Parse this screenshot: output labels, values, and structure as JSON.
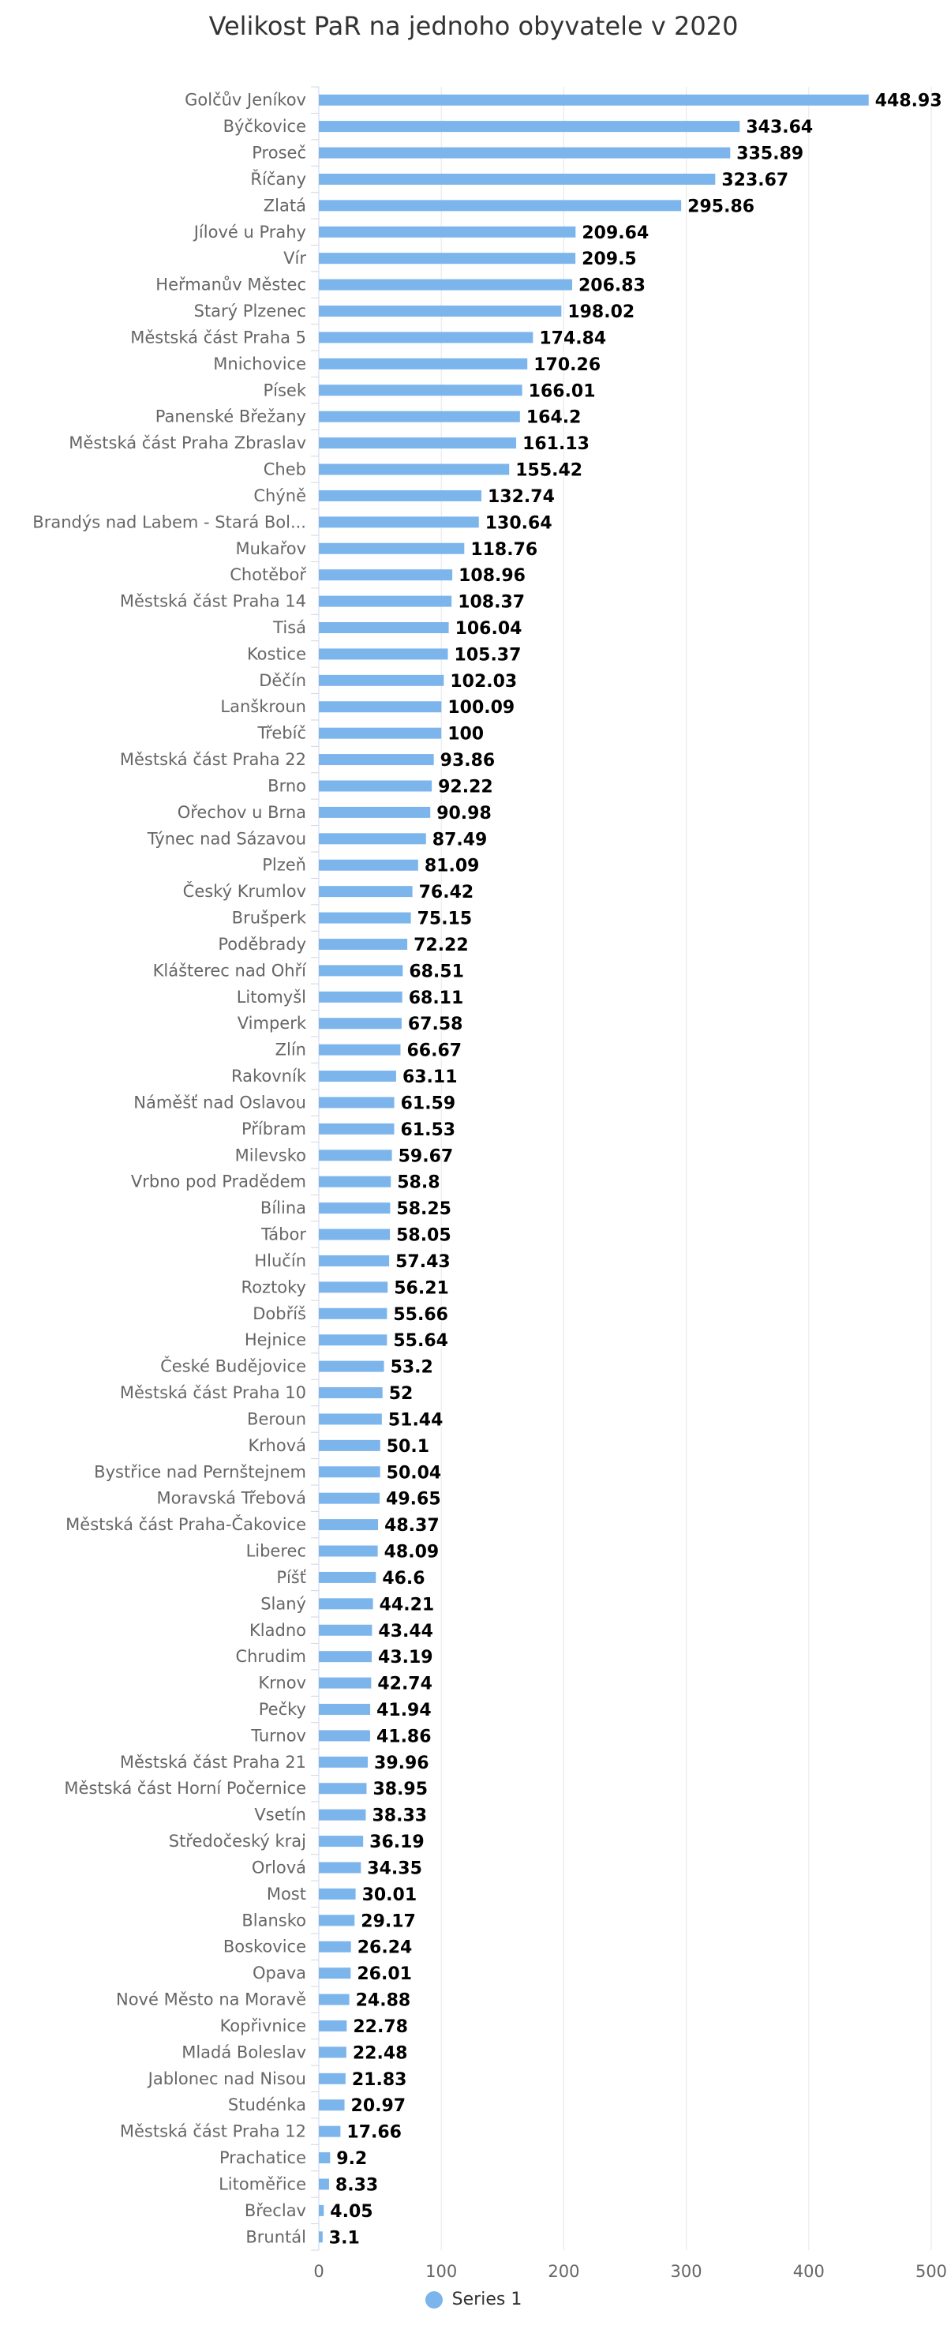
{
  "chart_data": {
    "type": "bar",
    "orientation": "horizontal",
    "title": "Velikost PaR na jednoho obyvatele v 2020",
    "xlabel": "",
    "ylabel": "",
    "xlim": [
      0,
      500
    ],
    "xticks": [
      0,
      100,
      200,
      300,
      400,
      500
    ],
    "grid": true,
    "legend_position": "bottom",
    "bar_color": "#7cb5ec",
    "categories": [
      "Golčův Jeníkov",
      "Býčkovice",
      "Proseč",
      "Říčany",
      "Zlatá",
      "Jílové u Prahy",
      "Vír",
      "Heřmanův Městec",
      "Starý Plzenec",
      "Městská část Praha 5",
      "Mnichovice",
      "Písek",
      "Panenské Břežany",
      "Městská část Praha Zbraslav",
      "Cheb",
      "Chýně",
      "Brandýs nad Labem - Stará Bol...",
      "Mukařov",
      "Chotěboř",
      "Městská část Praha 14",
      "Tisá",
      "Kostice",
      "Děčín",
      "Lanškroun",
      "Třebíč",
      "Městská část Praha 22",
      "Brno",
      "Ořechov u Brna",
      "Týnec nad Sázavou",
      "Plzeň",
      "Český Krumlov",
      "Brušperk",
      "Poděbrady",
      "Klášterec nad Ohří",
      "Litomyšl",
      "Vimperk",
      "Zlín",
      "Rakovník",
      "Náměšť nad Oslavou",
      "Příbram",
      "Milevsko",
      "Vrbno pod Pradědem",
      "Bílina",
      "Tábor",
      "Hlučín",
      "Roztoky",
      "Dobříš",
      "Hejnice",
      "České Budějovice",
      "Městská část Praha 10",
      "Beroun",
      "Krhová",
      "Bystřice nad Pernštejnem",
      "Moravská Třebová",
      "Městská část Praha-Čakovice",
      "Liberec",
      "Píšť",
      "Slaný",
      "Kladno",
      "Chrudim",
      "Krnov",
      "Pečky",
      "Turnov",
      "Městská část Praha 21",
      "Městská část Horní Počernice",
      "Vsetín",
      "Středočeský kraj",
      "Orlová",
      "Most",
      "Blansko",
      "Boskovice",
      "Opava",
      "Nové Město na Moravě",
      "Kopřivnice",
      "Mladá Boleslav",
      "Jablonec nad Nisou",
      "Studénka",
      "Městská část Praha 12",
      "Prachatice",
      "Litoměřice",
      "Břeclav",
      "Bruntál"
    ],
    "series": [
      {
        "name": "Series 1",
        "values": [
          448.93,
          343.64,
          335.89,
          323.67,
          295.86,
          209.64,
          209.5,
          206.83,
          198.02,
          174.84,
          170.26,
          166.01,
          164.2,
          161.13,
          155.42,
          132.74,
          130.64,
          118.76,
          108.96,
          108.37,
          106.04,
          105.37,
          102.03,
          100.09,
          100,
          93.86,
          92.22,
          90.98,
          87.49,
          81.09,
          76.42,
          75.15,
          72.22,
          68.51,
          68.11,
          67.58,
          66.67,
          63.11,
          61.59,
          61.53,
          59.67,
          58.8,
          58.25,
          58.05,
          57.43,
          56.21,
          55.66,
          55.64,
          53.2,
          52,
          51.44,
          50.1,
          50.04,
          49.65,
          48.37,
          48.09,
          46.6,
          44.21,
          43.44,
          43.19,
          42.74,
          41.94,
          41.86,
          39.96,
          38.95,
          38.33,
          36.19,
          34.35,
          30.01,
          29.17,
          26.24,
          26.01,
          24.88,
          22.78,
          22.48,
          21.83,
          20.97,
          17.66,
          9.2,
          8.33,
          4.05,
          3.1
        ]
      }
    ]
  }
}
